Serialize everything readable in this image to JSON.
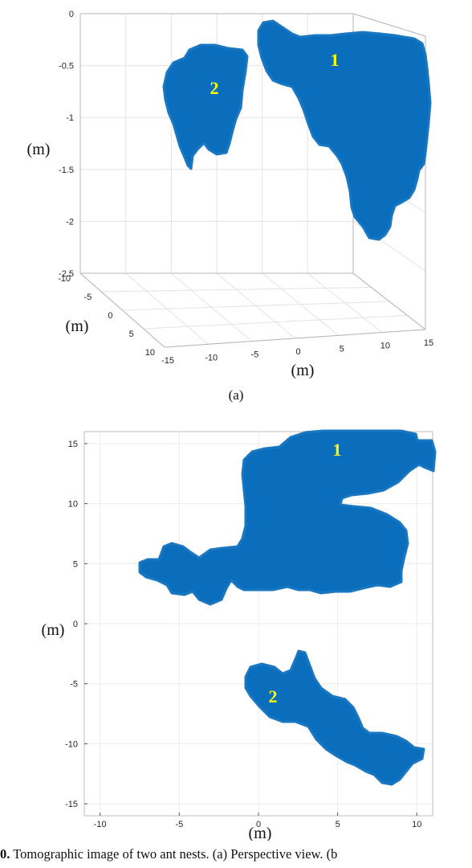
{
  "chart_data": [
    {
      "type": "scatter",
      "view": "3d-perspective",
      "panel_label": "(a)",
      "z_unit_label": "(m)",
      "y_unit_label": "(m)",
      "x_unit_label": "(m)",
      "z_ticks": [
        "0",
        "-0.5",
        "-1",
        "-1.5",
        "-2",
        "-2.5"
      ],
      "zlim": [
        -2.5,
        0
      ],
      "y_ticks": [
        "-10",
        "-5",
        "0",
        "5",
        "10"
      ],
      "ylim": [
        -10,
        10
      ],
      "x_ticks": [
        "-15",
        "-10",
        "-5",
        "0",
        "5",
        "10",
        "15"
      ],
      "xlim": [
        -15,
        15
      ],
      "grid": true,
      "series": [
        {
          "name": "1",
          "color": "#0a6ebd"
        },
        {
          "name": "2",
          "color": "#0a6ebd"
        }
      ]
    },
    {
      "type": "scatter",
      "view": "top",
      "x_unit_label": "(m)",
      "y_unit_label": "(m)",
      "x_ticks": [
        "-10",
        "-5",
        "0",
        "5",
        "10"
      ],
      "xlim": [
        -11,
        11
      ],
      "y_ticks": [
        "15",
        "10",
        "5",
        "0",
        "-5",
        "-10",
        "-15"
      ],
      "ylim": [
        -16,
        16
      ],
      "grid": true,
      "series": [
        {
          "name": "1",
          "color": "#0a6ebd"
        },
        {
          "name": "2",
          "color": "#0a6ebd"
        }
      ]
    }
  ],
  "caption": {
    "number": "0.",
    "text": " Tomographic image of two ant nests. (a) Perspective view. (b"
  }
}
